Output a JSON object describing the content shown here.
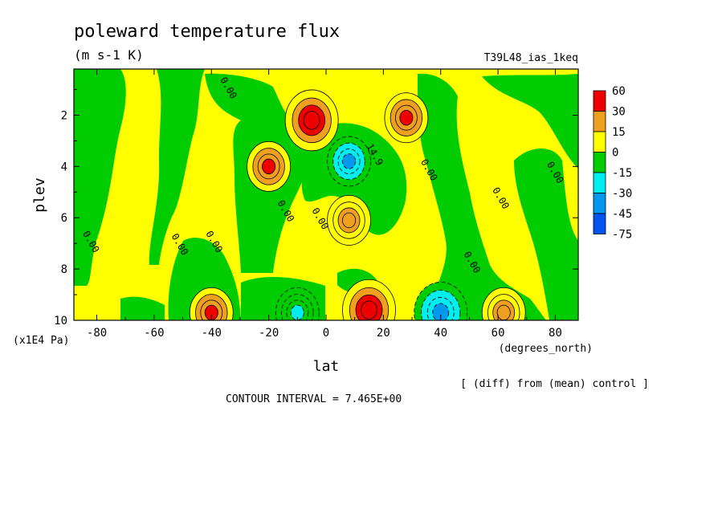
{
  "chart_data": {
    "type": "heatmap",
    "title": "poleward temperature flux",
    "units": "(m s-1 K)",
    "run_label": "T39L48_ias_1keq",
    "xlabel": "lat",
    "x_units": "(degrees_north)",
    "ylabel": "plev",
    "y_units": "(x1E4 Pa)",
    "xlim": [
      -88,
      88
    ],
    "ylim": [
      10,
      0.2
    ],
    "x_ticks": [
      -80,
      -60,
      -40,
      -20,
      0,
      20,
      40,
      60,
      80
    ],
    "x_tick_labels": [
      "-80",
      "-60",
      "-40",
      "-20",
      "0",
      "20",
      "40",
      "60",
      "80"
    ],
    "y_ticks": [
      2,
      4,
      6,
      8,
      10
    ],
    "y_tick_labels": [
      "2",
      "4",
      "6",
      "8",
      "10"
    ],
    "colorbar": {
      "labels": [
        "60",
        "30",
        "15",
        "0",
        "-15",
        "-30",
        "-45",
        "-75"
      ],
      "bins": [
        {
          "color": "#ee0000",
          "min": 30,
          "max": 60
        },
        {
          "color": "#f0a020",
          "min": 15,
          "max": 30
        },
        {
          "color": "#ffff00",
          "min": 0,
          "max": 15
        },
        {
          "color": "#00cc00",
          "min": -15,
          "max": 0
        },
        {
          "color": "#00eeee",
          "min": -30,
          "max": -15
        },
        {
          "color": "#0099ee",
          "min": -45,
          "max": -30
        },
        {
          "color": "#0055ee",
          "min": -75,
          "max": -45
        }
      ]
    },
    "contour_labels": [
      {
        "text": "0.00",
        "lat": -83,
        "plev": 7.0
      },
      {
        "text": "0.00",
        "lat": -52,
        "plev": 7.1
      },
      {
        "text": "0.00",
        "lat": -40,
        "plev": 7.0
      },
      {
        "text": "0.00",
        "lat": -35,
        "plev": 1.0
      },
      {
        "text": "0.00",
        "lat": -15,
        "plev": 5.8
      },
      {
        "text": "0.00",
        "lat": -3,
        "plev": 6.1
      },
      {
        "text": "14.9",
        "lat": 16,
        "plev": 3.6
      },
      {
        "text": "0.00",
        "lat": 35,
        "plev": 4.2
      },
      {
        "text": "0.00",
        "lat": 60,
        "plev": 5.3
      },
      {
        "text": "0.00",
        "lat": 79,
        "plev": 4.3
      },
      {
        "text": "0.00",
        "lat": 50,
        "plev": 7.8
      }
    ],
    "features": [
      {
        "lat": -5,
        "plev": 2.2,
        "value": 45
      },
      {
        "lat": 28,
        "plev": 2.1,
        "value": 30
      },
      {
        "lat": -20,
        "plev": 4.0,
        "value": 35
      },
      {
        "lat": 8,
        "plev": 6.1,
        "value": 22
      },
      {
        "lat": 8,
        "plev": 3.8,
        "value": -33
      },
      {
        "lat": 15,
        "plev": 9.6,
        "value": 40
      },
      {
        "lat": -40,
        "plev": 9.7,
        "value": 30
      },
      {
        "lat": 62,
        "plev": 9.7,
        "value": 22
      },
      {
        "lat": 40,
        "plev": 9.7,
        "value": -40
      },
      {
        "lat": -10,
        "plev": 9.7,
        "value": -20
      }
    ],
    "contour_interval_text": "CONTOUR INTERVAL = 7.465E+00",
    "diff_note": "[ (diff) from (mean) control ]"
  }
}
